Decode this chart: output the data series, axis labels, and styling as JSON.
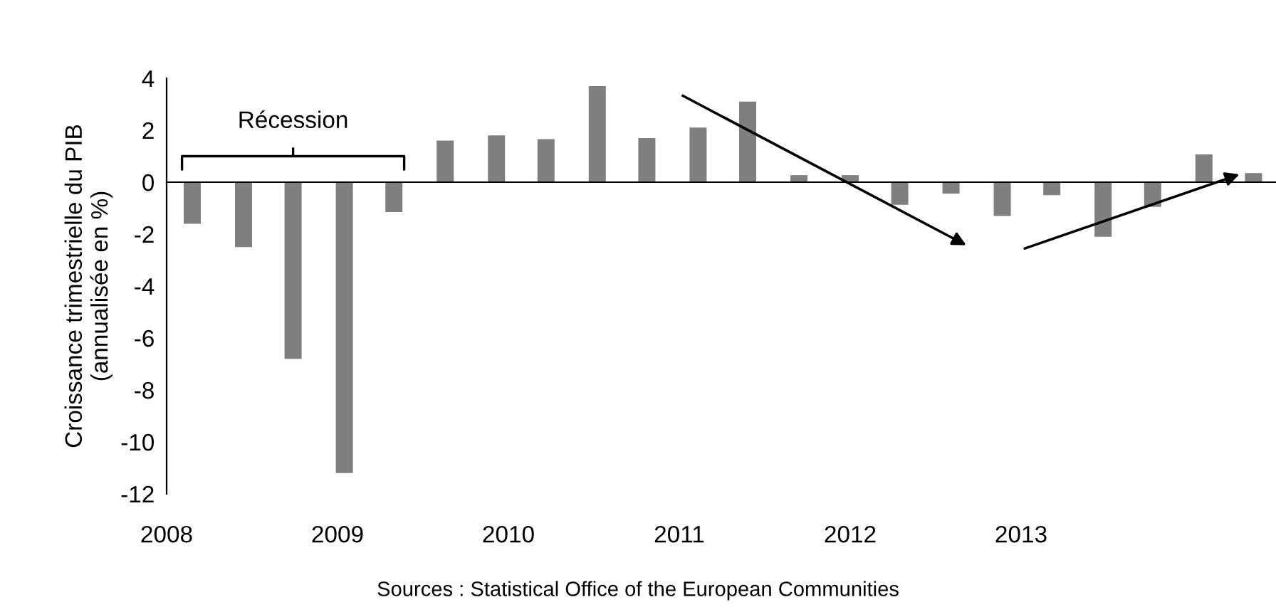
{
  "chart_data": {
    "type": "bar",
    "ylabel": "Croissance trimestrielle du PIB\n(annualisée en %)",
    "x": [
      2008.15,
      2008.45,
      2008.74,
      2009.04,
      2009.33,
      2009.63,
      2009.93,
      2010.22,
      2010.52,
      2010.81,
      2011.11,
      2011.4,
      2011.7,
      2012.0,
      2012.29,
      2012.59,
      2012.89,
      2013.18,
      2013.48,
      2013.77,
      2014.07,
      2014.36
    ],
    "values": [
      -1.6,
      -2.5,
      -6.8,
      -11.2,
      -1.15,
      1.6,
      1.8,
      1.66,
      3.7,
      1.7,
      2.1,
      3.1,
      0.27,
      0.27,
      -0.87,
      -0.44,
      -1.3,
      -0.5,
      -2.1,
      -0.95,
      1.07,
      0.35
    ],
    "color": "#7f7f7f",
    "xlim": [
      2008,
      2014.5
    ],
    "xticks": [
      2008,
      2009,
      2010,
      2011,
      2012,
      2013
    ],
    "ylim": [
      -12,
      4
    ],
    "yticks": [
      -12,
      -10,
      -8,
      -6,
      -4,
      -2,
      0,
      2,
      4
    ],
    "legend": false,
    "annotations": [
      "Récession",
      "Sources : Statistical Office of the European Communities"
    ]
  }
}
